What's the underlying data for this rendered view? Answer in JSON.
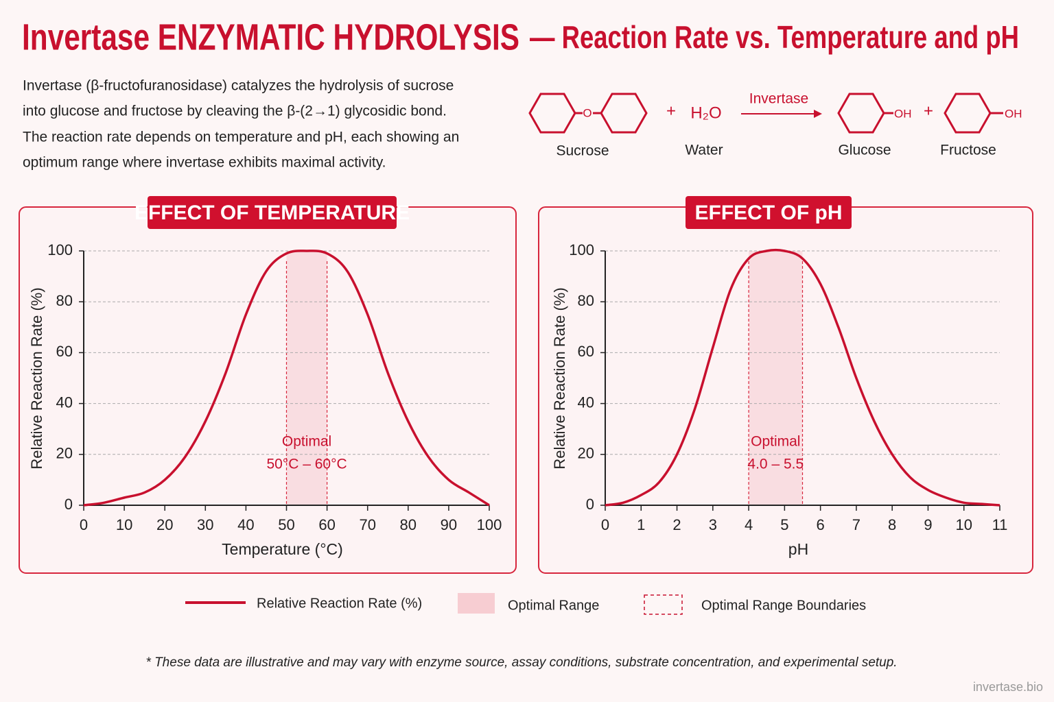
{
  "title_main": "Invertase ENZYMATIC HYDROLYSIS",
  "title_sub": "— Reaction Rate vs. Temperature and pH",
  "description": [
    "Invertase (β-fructofuranosidase) catalyzes the hydrolysis of sucrose",
    "into glucose and fructose by cleaving the β-(2→1) glycosidic bond.",
    "The reaction rate depends on temperature and pH, each showing an",
    "optimum range where invertase exhibits maximal activity."
  ],
  "reaction": {
    "sucrose": "Sucrose",
    "water": "Water",
    "water_formula": "H₂O",
    "enzyme": "Invertase",
    "glucose": "Glucose",
    "fructose": "Fructose",
    "plus": "+",
    "oxygen": "O",
    "hydroxyl": "OH"
  },
  "chart_data": [
    {
      "type": "line",
      "title": "EFFECT OF TEMPERATURE",
      "x_label": "Temperature (°C)",
      "y_label": "Relative Reaction Rate (%)",
      "x": [
        0,
        5,
        10,
        15,
        20,
        25,
        30,
        35,
        40,
        45,
        50,
        55,
        60,
        65,
        70,
        75,
        80,
        85,
        90,
        95,
        100
      ],
      "values": [
        0,
        1,
        3,
        5,
        10,
        19,
        33,
        52,
        75,
        92,
        99,
        100,
        99,
        92,
        75,
        52,
        33,
        19,
        10,
        5,
        0
      ],
      "color": "#c8102e",
      "xlim": [
        0,
        100
      ],
      "ylim": [
        0,
        100
      ],
      "xticks": [
        0,
        10,
        20,
        30,
        40,
        50,
        60,
        70,
        80,
        90,
        100
      ],
      "yticks": [
        0,
        20,
        40,
        60,
        80,
        100
      ],
      "grid": true,
      "optimal_range": [
        50,
        60
      ],
      "optimal_label": [
        "Optimal",
        "50°C – 60°C"
      ]
    },
    {
      "type": "line",
      "title": "EFFECT OF pH",
      "x_label": "pH",
      "y_label": "Relative Reaction Rate (%)",
      "x": [
        0,
        0.5,
        1,
        1.5,
        2,
        2.5,
        3,
        3.5,
        4,
        4.5,
        5,
        5.5,
        6,
        6.5,
        7,
        7.5,
        8,
        8.5,
        9,
        9.5,
        10,
        10.5,
        11
      ],
      "values": [
        0,
        1,
        4,
        9,
        20,
        38,
        62,
        85,
        97,
        100,
        100,
        97,
        87,
        70,
        50,
        33,
        20,
        11,
        6,
        3,
        1,
        0.5,
        0
      ],
      "color": "#c8102e",
      "xlim": [
        0,
        11
      ],
      "ylim": [
        0,
        100
      ],
      "xticks": [
        0,
        1,
        2,
        3,
        4,
        5,
        6,
        7,
        8,
        9,
        10,
        11
      ],
      "yticks": [
        0,
        20,
        40,
        60,
        80,
        100
      ],
      "grid": true,
      "optimal_range": [
        4.0,
        5.5
      ],
      "optimal_label": [
        "Optimal",
        "4.0 – 5.5"
      ]
    }
  ],
  "legend": [
    "Relative Reaction Rate (%)",
    "Optimal Range",
    "Optimal Range Boundaries"
  ],
  "footnote": "* These data are illustrative and may vary with enzyme source, assay conditions, substrate concentration, and experimental setup.",
  "watermark": "invertase.bio"
}
